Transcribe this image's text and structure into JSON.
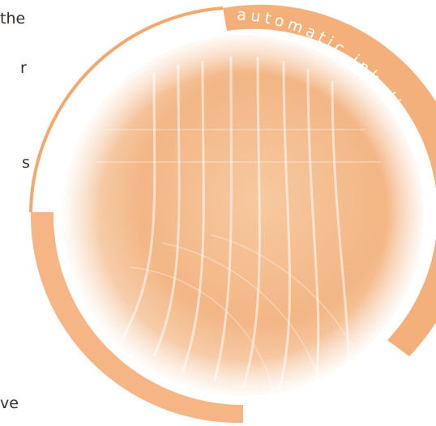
{
  "page_text": {
    "fragments": [
      "the",
      "r",
      "s",
      "ve"
    ]
  },
  "badge": {
    "label": "automatic ink dispensing system"
  }
}
